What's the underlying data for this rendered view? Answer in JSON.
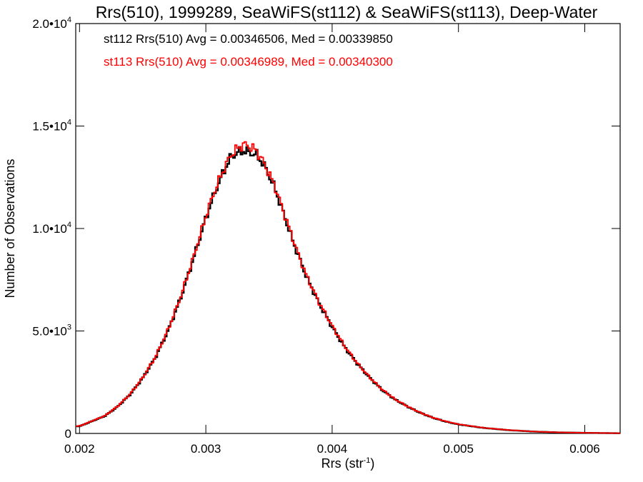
{
  "chart_data": {
    "type": "line",
    "title": "Rrs(510), 1999289, SeaWiFS(st112) & SeaWiFS(st113), Deep-Water",
    "xlabel": "Rrs (str",
    "xlabel_sup": "-1",
    "xlabel_close": ")",
    "ylabel": "Number of Observations",
    "xlim": [
      0.00197,
      0.00628
    ],
    "ylim": [
      0,
      20000
    ],
    "grid": false,
    "x_ticks": [
      {
        "value": 0.002,
        "label": "0.002"
      },
      {
        "value": 0.003,
        "label": "0.003"
      },
      {
        "value": 0.004,
        "label": "0.004"
      },
      {
        "value": 0.005,
        "label": "0.005"
      },
      {
        "value": 0.006,
        "label": "0.006"
      }
    ],
    "y_ticks": [
      {
        "value": 0,
        "mant": "0",
        "exp": ""
      },
      {
        "value": 5000,
        "mant": "5.0•10",
        "exp": "3"
      },
      {
        "value": 10000,
        "mant": "1.0•10",
        "exp": "4"
      },
      {
        "value": 15000,
        "mant": "1.5•10",
        "exp": "4"
      },
      {
        "value": 20000,
        "mant": "2.0•10",
        "exp": "4"
      }
    ],
    "annotations": [
      {
        "text": "st112 Rrs(510) Avg = 0.00346506, Med = 0.00339850",
        "color": "#000000"
      },
      {
        "text": "st113 Rrs(510) Avg = 0.00346989, Med = 0.00340300",
        "color": "#ff0000"
      }
    ],
    "series": [
      {
        "color": "#000000",
        "x": [
          0.002,
          0.0021,
          0.0022,
          0.0023,
          0.0024,
          0.0025,
          0.0026,
          0.0027,
          0.0028,
          0.0029,
          0.003,
          0.00305,
          0.0031,
          0.00315,
          0.0032,
          0.00325,
          0.0033,
          0.00335,
          0.0034,
          0.00345,
          0.0035,
          0.00355,
          0.0036,
          0.00365,
          0.0037,
          0.00375,
          0.0038,
          0.0039,
          0.004,
          0.0041,
          0.0042,
          0.0043,
          0.0044,
          0.0045,
          0.0046,
          0.0047,
          0.0048,
          0.0049,
          0.005,
          0.0052,
          0.0054,
          0.0056,
          0.0058,
          0.006,
          0.00628
        ],
        "y": [
          350,
          600,
          850,
          1300,
          1900,
          2700,
          3700,
          5000,
          6600,
          8500,
          10500,
          11400,
          12200,
          12900,
          13500,
          13700,
          13800,
          13700,
          13600,
          13200,
          12600,
          11900,
          11000,
          10100,
          9200,
          8400,
          7600,
          6300,
          5200,
          4200,
          3400,
          2700,
          2100,
          1650,
          1300,
          1000,
          760,
          580,
          440,
          270,
          160,
          90,
          50,
          30,
          10
        ]
      },
      {
        "color": "#ff0000",
        "x": [
          0.002,
          0.0021,
          0.0022,
          0.0023,
          0.0024,
          0.0025,
          0.0026,
          0.0027,
          0.0028,
          0.0029,
          0.003,
          0.00305,
          0.0031,
          0.00315,
          0.0032,
          0.00325,
          0.0033,
          0.00335,
          0.0034,
          0.00345,
          0.0035,
          0.00355,
          0.0036,
          0.00365,
          0.0037,
          0.00375,
          0.0038,
          0.0039,
          0.004,
          0.0041,
          0.0042,
          0.0043,
          0.0044,
          0.0045,
          0.0046,
          0.0047,
          0.0048,
          0.0049,
          0.005,
          0.0052,
          0.0054,
          0.0056,
          0.0058,
          0.006,
          0.00628
        ],
        "y": [
          360,
          610,
          860,
          1320,
          1920,
          2720,
          3720,
          5050,
          6650,
          8550,
          10600,
          11500,
          12300,
          13000,
          13600,
          13900,
          14100,
          14000,
          13800,
          13300,
          12700,
          12000,
          11100,
          10200,
          9300,
          8450,
          7650,
          6350,
          5250,
          4250,
          3420,
          2720,
          2120,
          1660,
          1310,
          1010,
          770,
          590,
          450,
          275,
          165,
          92,
          52,
          31,
          11
        ]
      }
    ]
  }
}
